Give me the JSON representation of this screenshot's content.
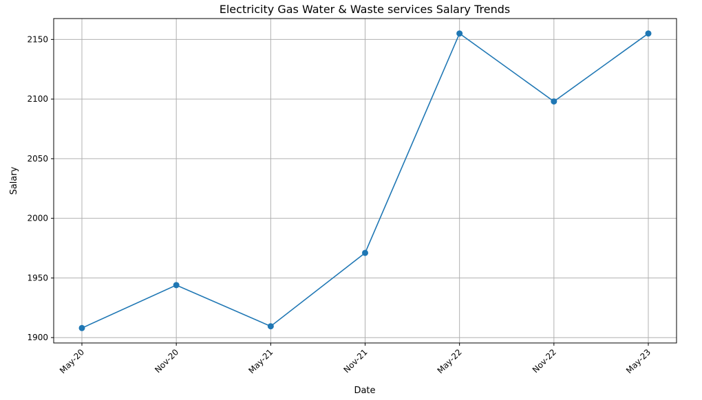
{
  "chart_data": {
    "type": "line",
    "title": "Electricity Gas Water & Waste services Salary Trends",
    "xlabel": "Date",
    "ylabel": "Salary",
    "categories": [
      "May-20",
      "Nov-20",
      "May-21",
      "Nov-21",
      "May-22",
      "Nov-22",
      "May-23"
    ],
    "series": [
      {
        "values": [
          1908,
          1944,
          1909.5,
          1971,
          2155,
          2098,
          2155
        ],
        "color": "#1f77b4",
        "marker": "circle"
      }
    ],
    "yticks": [
      1900,
      1950,
      2000,
      2050,
      2100,
      2150
    ],
    "ylim": [
      1895.5,
      2167.5
    ],
    "grid": true,
    "xtick_rotation": 45
  }
}
